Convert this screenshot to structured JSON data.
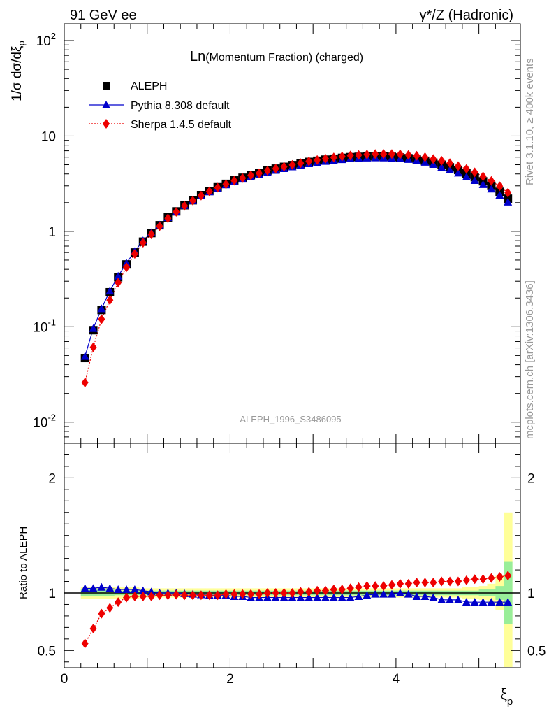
{
  "header": {
    "left_label": "91 GeV ee",
    "right_label": "γ*/Z (Hadronic)"
  },
  "side": {
    "rivet_label": "Rivet 3.1.10, ≥ 400k events",
    "mcplots_label": "mcplots.cern.ch [arXiv:1306.3436]"
  },
  "chart_data": [
    {
      "type": "scatter",
      "panel": "main",
      "title_main": "Ln",
      "title_rest": "(Momentum Fraction) (charged)",
      "watermark": "ALEPH_1996_S3486095",
      "ylabel": "1/σ dσ/dξ_p",
      "yscale": "log",
      "ylim": [
        0.006,
        150
      ],
      "xlim": [
        0,
        5.5
      ],
      "ytick_labels": [
        "10^-2",
        "10^-1",
        "1",
        "10",
        "10^2"
      ],
      "legend_position": "top-left",
      "x": [
        0.25,
        0.35,
        0.45,
        0.55,
        0.65,
        0.75,
        0.85,
        0.95,
        1.05,
        1.15,
        1.25,
        1.35,
        1.45,
        1.55,
        1.65,
        1.75,
        1.85,
        1.95,
        2.05,
        2.15,
        2.25,
        2.35,
        2.45,
        2.55,
        2.65,
        2.75,
        2.85,
        2.95,
        3.05,
        3.15,
        3.25,
        3.35,
        3.45,
        3.55,
        3.65,
        3.75,
        3.85,
        3.95,
        4.05,
        4.15,
        4.25,
        4.35,
        4.45,
        4.55,
        4.65,
        4.75,
        4.85,
        4.95,
        5.05,
        5.15,
        5.25,
        5.35
      ],
      "series": [
        {
          "name": "ALEPH",
          "marker": "square",
          "color": "#000000",
          "values": [
            0.047,
            0.092,
            0.15,
            0.23,
            0.33,
            0.45,
            0.6,
            0.78,
            0.96,
            1.16,
            1.4,
            1.62,
            1.88,
            2.12,
            2.4,
            2.65,
            2.9,
            3.15,
            3.42,
            3.65,
            3.9,
            4.1,
            4.35,
            4.55,
            4.75,
            4.95,
            5.15,
            5.35,
            5.5,
            5.65,
            5.78,
            5.9,
            6.0,
            6.05,
            6.1,
            6.12,
            6.1,
            6.05,
            5.95,
            5.85,
            5.7,
            5.5,
            5.25,
            5.0,
            4.7,
            4.4,
            4.05,
            3.7,
            3.35,
            3.0,
            2.6,
            2.2
          ]
        },
        {
          "name": "Pythia 8.308 default",
          "marker": "triangle",
          "color": "#0000cc",
          "line": "solid",
          "values": [
            0.049,
            0.096,
            0.155,
            0.237,
            0.34,
            0.465,
            0.617,
            0.8,
            0.97,
            1.17,
            1.4,
            1.62,
            1.87,
            2.1,
            2.36,
            2.6,
            2.84,
            3.08,
            3.32,
            3.53,
            3.75,
            3.95,
            4.18,
            4.37,
            4.56,
            4.75,
            4.94,
            5.13,
            5.28,
            5.43,
            5.55,
            5.67,
            5.77,
            5.83,
            5.88,
            5.91,
            5.9,
            5.86,
            5.79,
            5.69,
            5.52,
            5.32,
            5.04,
            4.7,
            4.42,
            4.09,
            3.74,
            3.42,
            3.1,
            2.78,
            2.4,
            2.03
          ]
        },
        {
          "name": "Sherpa 1.4.5 default",
          "marker": "diamond",
          "color": "#ee0000",
          "line": "dotted",
          "values": [
            0.026,
            0.061,
            0.12,
            0.19,
            0.29,
            0.42,
            0.58,
            0.76,
            0.93,
            1.13,
            1.37,
            1.6,
            1.85,
            2.1,
            2.37,
            2.62,
            2.87,
            3.12,
            3.4,
            3.62,
            3.87,
            4.07,
            4.33,
            4.55,
            4.76,
            4.98,
            5.2,
            5.43,
            5.61,
            5.79,
            5.96,
            6.1,
            6.24,
            6.32,
            6.4,
            6.47,
            6.48,
            6.47,
            6.43,
            6.33,
            6.2,
            6.0,
            5.74,
            5.5,
            5.19,
            4.84,
            4.52,
            4.16,
            3.77,
            3.38,
            2.97,
            2.54
          ]
        }
      ]
    },
    {
      "type": "scatter",
      "panel": "ratio",
      "ylabel": "Ratio to ALEPH",
      "xlabel": "ξ_p",
      "ylim": [
        0.35,
        2.3
      ],
      "xlim": [
        0,
        5.5
      ],
      "yticks": [
        0.5,
        1,
        2
      ],
      "ytick_labels": [
        "0.5",
        "1",
        "2"
      ],
      "xticks": [
        0,
        2,
        4
      ],
      "xtick_labels": [
        "0",
        "2",
        "4"
      ],
      "bands": [
        {
          "name": "stat+syst (outer)",
          "color": "#ffff99",
          "halfwidths": [
            0.05,
            0.05,
            0.05,
            0.05,
            0.05,
            0.05,
            0.05,
            0.04,
            0.04,
            0.04,
            0.04,
            0.04,
            0.04,
            0.04,
            0.04,
            0.04,
            0.04,
            0.04,
            0.04,
            0.04,
            0.04,
            0.04,
            0.04,
            0.04,
            0.04,
            0.04,
            0.04,
            0.04,
            0.04,
            0.04,
            0.04,
            0.04,
            0.04,
            0.04,
            0.04,
            0.04,
            0.04,
            0.04,
            0.04,
            0.04,
            0.04,
            0.04,
            0.04,
            0.04,
            0.04,
            0.04,
            0.05,
            0.05,
            0.06,
            0.08,
            0.15,
            0.7
          ]
        },
        {
          "name": "stat (inner)",
          "color": "#99ee99",
          "halfwidths": [
            0.03,
            0.03,
            0.03,
            0.03,
            0.02,
            0.02,
            0.02,
            0.02,
            0.02,
            0.02,
            0.02,
            0.02,
            0.02,
            0.02,
            0.02,
            0.02,
            0.02,
            0.02,
            0.02,
            0.02,
            0.02,
            0.02,
            0.02,
            0.02,
            0.02,
            0.02,
            0.02,
            0.02,
            0.02,
            0.02,
            0.02,
            0.02,
            0.02,
            0.02,
            0.02,
            0.02,
            0.02,
            0.02,
            0.02,
            0.02,
            0.02,
            0.02,
            0.02,
            0.02,
            0.02,
            0.02,
            0.02,
            0.02,
            0.03,
            0.03,
            0.06,
            0.27
          ]
        }
      ],
      "series": [
        {
          "name": "Pythia 8.308 default",
          "marker": "triangle",
          "color": "#0000cc",
          "line": "solid",
          "values": [
            1.04,
            1.04,
            1.05,
            1.04,
            1.03,
            1.03,
            1.03,
            1.02,
            1.01,
            1.0,
            1.0,
            1.0,
            0.995,
            0.99,
            0.985,
            0.98,
            0.98,
            0.98,
            0.97,
            0.97,
            0.96,
            0.96,
            0.96,
            0.96,
            0.96,
            0.96,
            0.96,
            0.96,
            0.96,
            0.96,
            0.96,
            0.96,
            0.96,
            0.97,
            0.98,
            0.99,
            0.99,
            0.99,
            1.0,
            0.99,
            0.97,
            0.97,
            0.96,
            0.94,
            0.94,
            0.94,
            0.92,
            0.92,
            0.92,
            0.92,
            0.92,
            0.92
          ]
        },
        {
          "name": "Sherpa 1.4.5 default",
          "marker": "diamond",
          "color": "#ee0000",
          "line": "dotted",
          "values": [
            0.56,
            0.69,
            0.82,
            0.87,
            0.92,
            0.96,
            0.97,
            0.97,
            0.97,
            0.98,
            0.98,
            0.985,
            0.98,
            0.98,
            0.98,
            0.98,
            0.98,
            0.99,
            0.99,
            0.99,
            0.99,
            0.99,
            1.0,
            1.0,
            1.0,
            1.0,
            1.01,
            1.01,
            1.02,
            1.02,
            1.03,
            1.03,
            1.04,
            1.05,
            1.06,
            1.06,
            1.06,
            1.07,
            1.08,
            1.08,
            1.09,
            1.09,
            1.09,
            1.1,
            1.1,
            1.1,
            1.11,
            1.12,
            1.12,
            1.13,
            1.14,
            1.15
          ]
        }
      ]
    }
  ]
}
